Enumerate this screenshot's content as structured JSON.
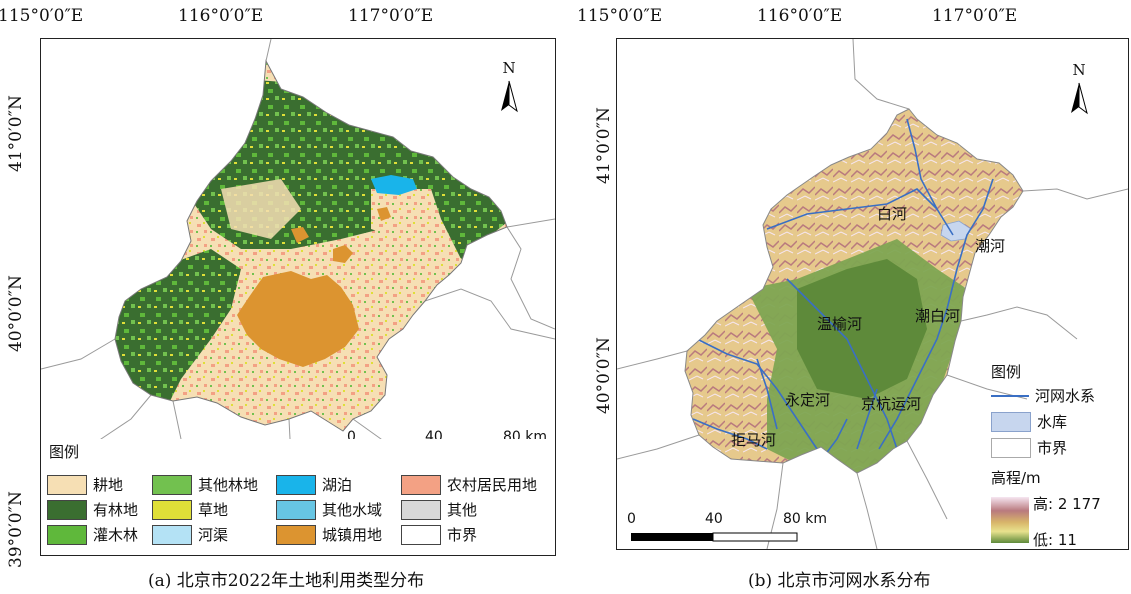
{
  "left_map": {
    "lon_ticks": [
      "115°0′0″E",
      "116°0′0″E",
      "117°0′0″E"
    ],
    "lat_ticks": [
      "41°0′0″N",
      "40°0′0″N",
      "39°0′0″N"
    ],
    "north_label": "N",
    "scale": {
      "zero": "0",
      "mid": "40",
      "end": "80 km"
    },
    "legend_title": "图例",
    "legend_items": [
      {
        "label": "耕地",
        "color": "#f6dfb4"
      },
      {
        "label": "其他林地",
        "color": "#72c14f"
      },
      {
        "label": "湖泊",
        "color": "#19b4ea"
      },
      {
        "label": "农村居民用地",
        "color": "#f3a184"
      },
      {
        "label": "有林地",
        "color": "#3a6e30"
      },
      {
        "label": "草地",
        "color": "#dfdf38"
      },
      {
        "label": "其他水域",
        "color": "#67c6e4"
      },
      {
        "label": "其他",
        "color": "#d8d8d8"
      },
      {
        "label": "灌木林",
        "color": "#5fb83b"
      },
      {
        "label": "河渠",
        "color": "#b4e2f5"
      },
      {
        "label": "城镇用地",
        "color": "#dc9430"
      },
      {
        "label": "市界",
        "color": "#ffffff"
      }
    ],
    "caption": "(a)  北京市2022年土地利用类型分布"
  },
  "right_map": {
    "lon_ticks": [
      "115°0′0″E",
      "116°0′0″E",
      "117°0′0″E"
    ],
    "lat_ticks": [
      "41°0′0″N",
      "40°0′0″N"
    ],
    "north_label": "N",
    "river_labels": [
      "白河",
      "潮河",
      "温榆河",
      "潮白河",
      "永定河",
      "京杭运河",
      "拒马河"
    ],
    "legend_title": "图例",
    "legend_items": [
      {
        "label": "河网水系",
        "type": "line",
        "color": "#3a6fc4"
      },
      {
        "label": "水库",
        "type": "box",
        "color": "#c7d6ee"
      },
      {
        "label": "市界",
        "type": "box",
        "color": "#ffffff"
      }
    ],
    "elevation": {
      "title": "高程/m",
      "high": "高: 2 177",
      "low": "低: 11"
    },
    "scale": {
      "zero": "0",
      "mid": "40",
      "end": "80 km"
    },
    "caption": "(b)  北京市河网水系分布"
  }
}
